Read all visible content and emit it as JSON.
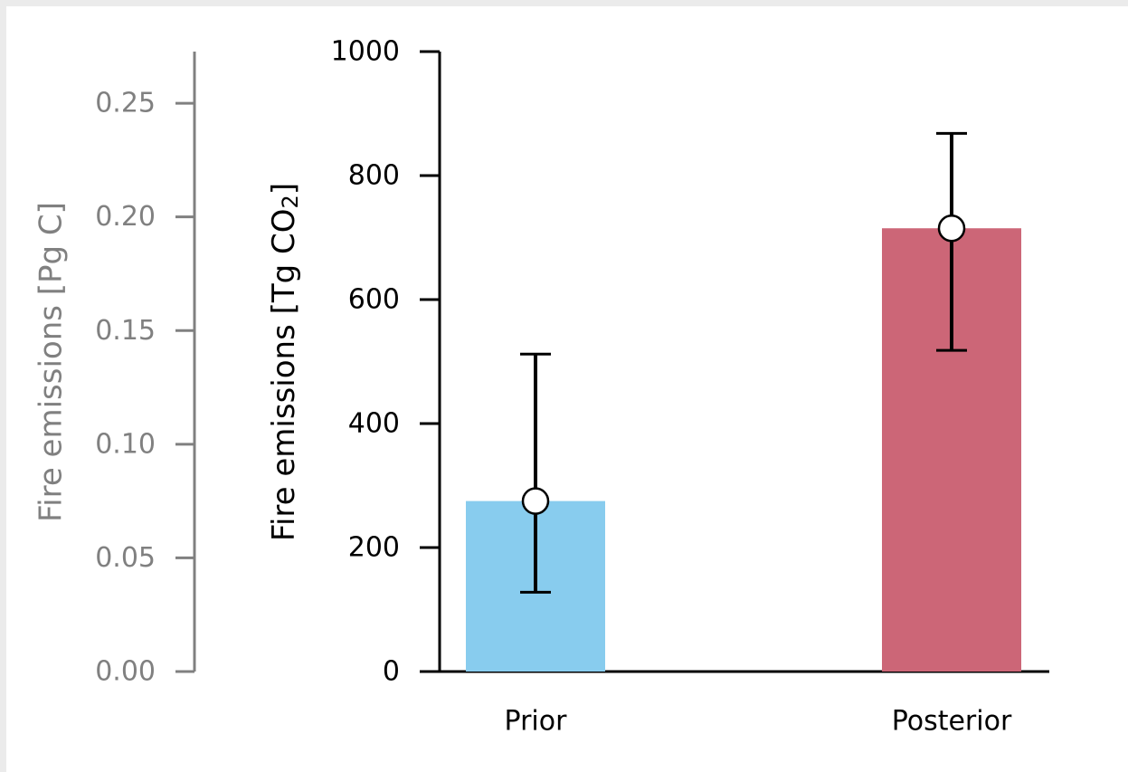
{
  "chart_data": {
    "type": "bar",
    "categories": [
      "Prior",
      "Posterior"
    ],
    "values": [
      275,
      715
    ],
    "error_low": [
      128,
      518
    ],
    "error_high": [
      512,
      868
    ],
    "colors": [
      "#88ccee",
      "#cc6677"
    ],
    "marker": "open-circle",
    "ylabel": "Fire emissions [Tg CO",
    "ylabel_sub": "2",
    "ylabel_end": "]",
    "ylim": [
      0,
      1000
    ],
    "yticks": [
      0,
      200,
      400,
      600,
      800,
      1000
    ],
    "secondary_axis": {
      "ylabel": "Fire emissions [Pg C]",
      "ylim": [
        0,
        0.27273
      ],
      "yticks": [
        "0.00",
        "0.05",
        "0.10",
        "0.15",
        "0.20",
        "0.25"
      ],
      "color": "#808080"
    },
    "grid": false
  }
}
